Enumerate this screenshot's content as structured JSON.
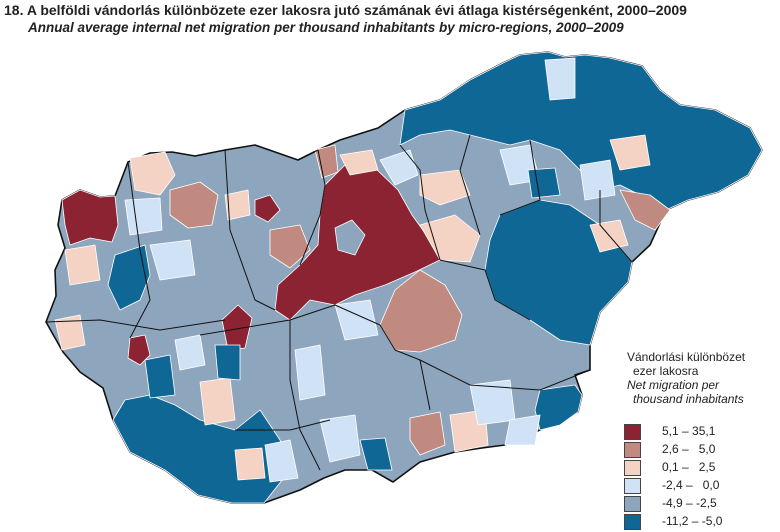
{
  "title": "18. A belföldi vándorlás különbözete ezer lakosra jutó számának évi átlaga kistérségenként, 2000–2009",
  "subtitle": "Annual average internal net migration per thousand inhabitants by micro-regions, 2000–2009",
  "legend": {
    "title_hu_1": "Vándorlási különbözet",
    "title_hu_2": "ezer lakosra",
    "title_en_1": "Net migration per",
    "title_en_2": "thousand inhabitants",
    "classes": [
      {
        "label": "5,1 – 35,1",
        "color": "#8b2332"
      },
      {
        "label": "2,6 –   5,0",
        "color": "#c08a80"
      },
      {
        "label": "0,1 –   2,5",
        "color": "#f4d2c4"
      },
      {
        "label": "-2,4 –   0,0",
        "color": "#cfe2f6"
      },
      {
        "label": "-4,9 – -2,5",
        "color": "#8ea6bd"
      },
      {
        "label": "-11,2 – -5,0",
        "color": "#0f6796"
      }
    ]
  }
}
